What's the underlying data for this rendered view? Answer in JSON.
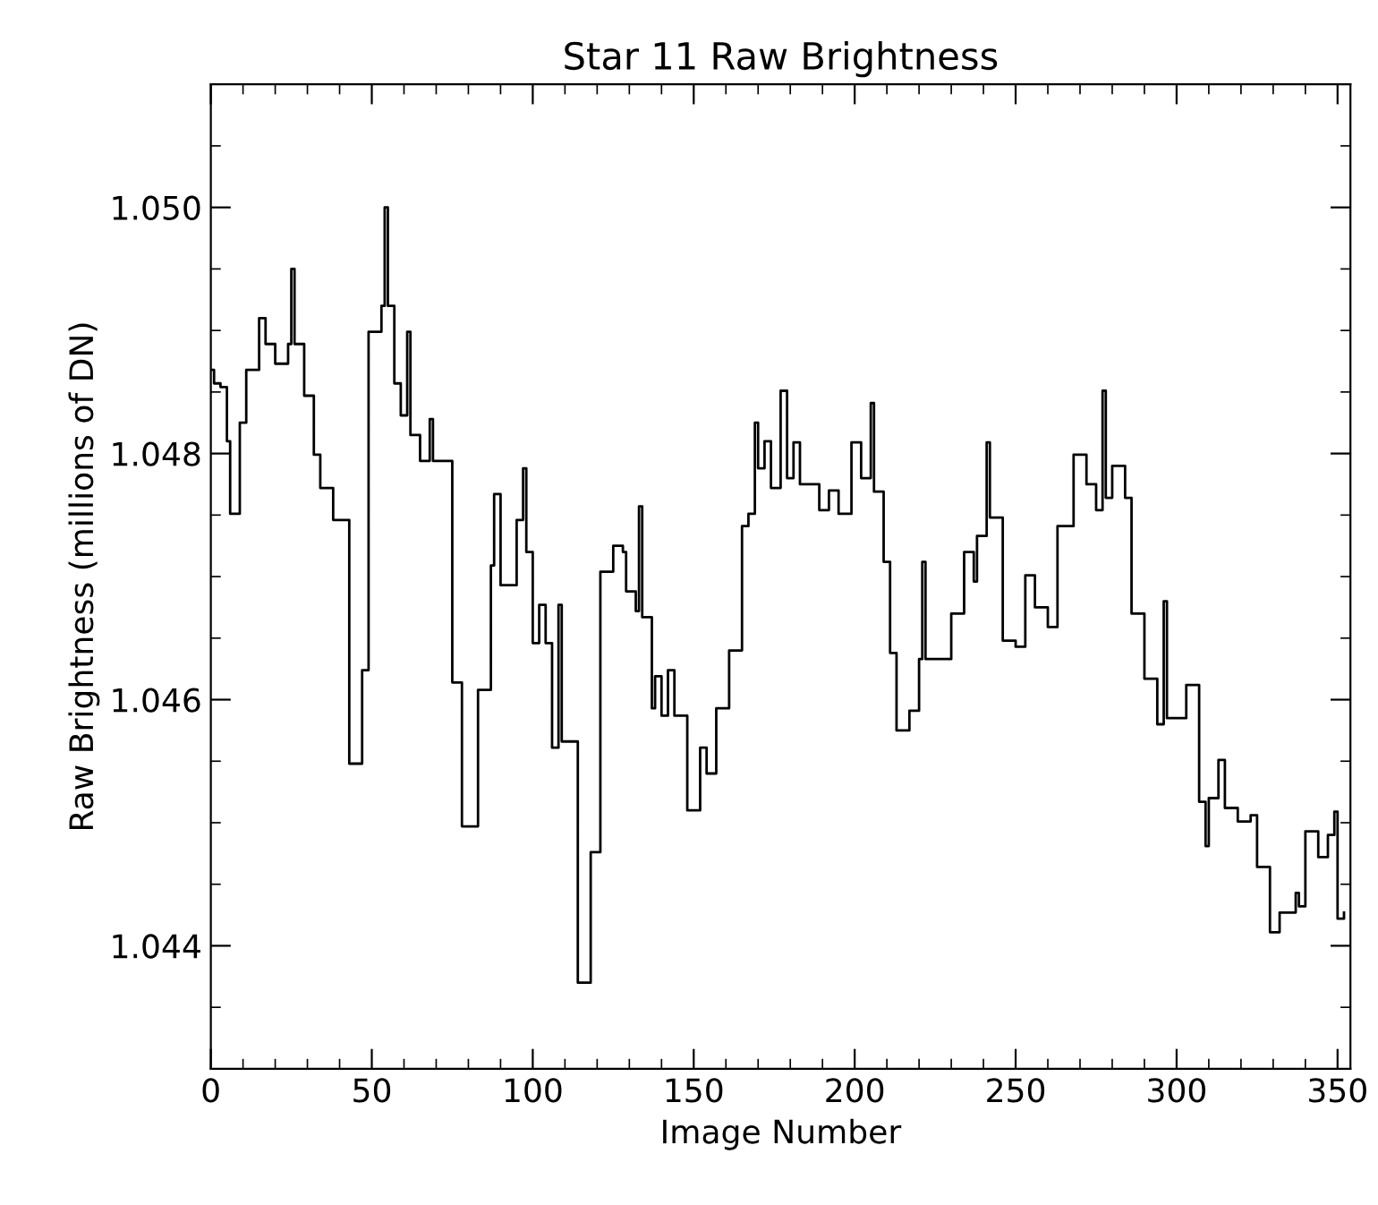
{
  "chart_data": {
    "type": "step",
    "title": "Star 11 Raw Brightness",
    "xlabel": "Image Number",
    "ylabel": "Raw Brightness (millions of DN)",
    "xlim": [
      0,
      354
    ],
    "ylim": [
      1.043,
      1.051
    ],
    "xticks": [
      0,
      50,
      100,
      150,
      200,
      250,
      300,
      350
    ],
    "yticks": [
      {
        "value": 1.044,
        "label": "1.044"
      },
      {
        "value": 1.046,
        "label": "1.046"
      },
      {
        "value": 1.048,
        "label": "1.048"
      },
      {
        "value": 1.05,
        "label": "1.050"
      }
    ],
    "grid": false,
    "color": "#000000",
    "x": [
      0,
      1,
      3,
      5,
      6,
      9,
      11,
      15,
      17,
      20,
      24,
      25,
      26,
      29,
      32,
      34,
      38,
      43,
      47,
      49,
      53,
      54,
      55,
      57,
      59,
      61,
      62,
      65,
      68,
      69,
      75,
      78,
      83,
      87,
      88,
      90,
      95,
      97,
      98,
      100,
      102,
      104,
      106,
      108,
      109,
      114,
      118,
      121,
      125,
      128,
      129,
      132,
      133,
      134,
      137,
      138,
      140,
      142,
      144,
      148,
      152,
      154,
      157,
      161,
      165,
      167,
      169,
      170,
      172,
      174,
      177,
      179,
      181,
      183,
      189,
      192,
      195,
      199,
      202,
      205,
      206,
      209,
      211,
      213,
      217,
      220,
      221,
      222,
      226,
      230,
      234,
      237,
      238,
      241,
      242,
      246,
      250,
      253,
      256,
      260,
      263,
      268,
      272,
      275,
      277,
      278,
      280,
      284,
      286,
      290,
      294,
      296,
      297,
      303,
      307,
      309,
      310,
      313,
      315,
      319,
      323,
      325,
      329,
      332,
      337,
      338,
      340,
      344,
      347,
      349,
      350,
      352
    ],
    "values": [
      1.04868,
      1.04857,
      1.04854,
      1.0481,
      1.04751,
      1.04825,
      1.04868,
      1.0491,
      1.04889,
      1.04873,
      1.04889,
      1.0495,
      1.04889,
      1.04847,
      1.04799,
      1.04772,
      1.04746,
      1.04548,
      1.04624,
      1.04899,
      1.0492,
      1.05,
      1.0492,
      1.04857,
      1.04831,
      1.04899,
      1.04815,
      1.04794,
      1.04828,
      1.04794,
      1.04614,
      1.04497,
      1.04608,
      1.04709,
      1.04767,
      1.04693,
      1.04746,
      1.04788,
      1.0472,
      1.04646,
      1.04677,
      1.04646,
      1.04561,
      1.04677,
      1.04566,
      1.0437,
      1.04476,
      1.04704,
      1.04725,
      1.0472,
      1.04688,
      1.04672,
      1.04757,
      1.04667,
      1.04593,
      1.04619,
      1.04587,
      1.04624,
      1.04587,
      1.0451,
      1.04561,
      1.0454,
      1.04593,
      1.0464,
      1.04741,
      1.04751,
      1.04825,
      1.04788,
      1.0481,
      1.04772,
      1.04851,
      1.0478,
      1.04809,
      1.04775,
      1.04754,
      1.0477,
      1.04751,
      1.04809,
      1.0478,
      1.04841,
      1.04769,
      1.04712,
      1.04638,
      1.04575,
      1.04591,
      1.04633,
      1.04712,
      1.04633,
      1.04633,
      1.0467,
      1.0472,
      1.04696,
      1.04733,
      1.04809,
      1.04748,
      1.04648,
      1.04643,
      1.04701,
      1.04675,
      1.04659,
      1.04741,
      1.04799,
      1.04775,
      1.04754,
      1.04851,
      1.04764,
      1.0479,
      1.04764,
      1.0467,
      1.04617,
      1.0458,
      1.0468,
      1.04585,
      1.04612,
      1.04517,
      1.04481,
      1.0452,
      1.04551,
      1.04512,
      1.04501,
      1.04506,
      1.04464,
      1.04411,
      1.04427,
      1.04443,
      1.04432,
      1.04493,
      1.04472,
      1.0449,
      1.04509,
      1.04422,
      1.04427
    ]
  }
}
